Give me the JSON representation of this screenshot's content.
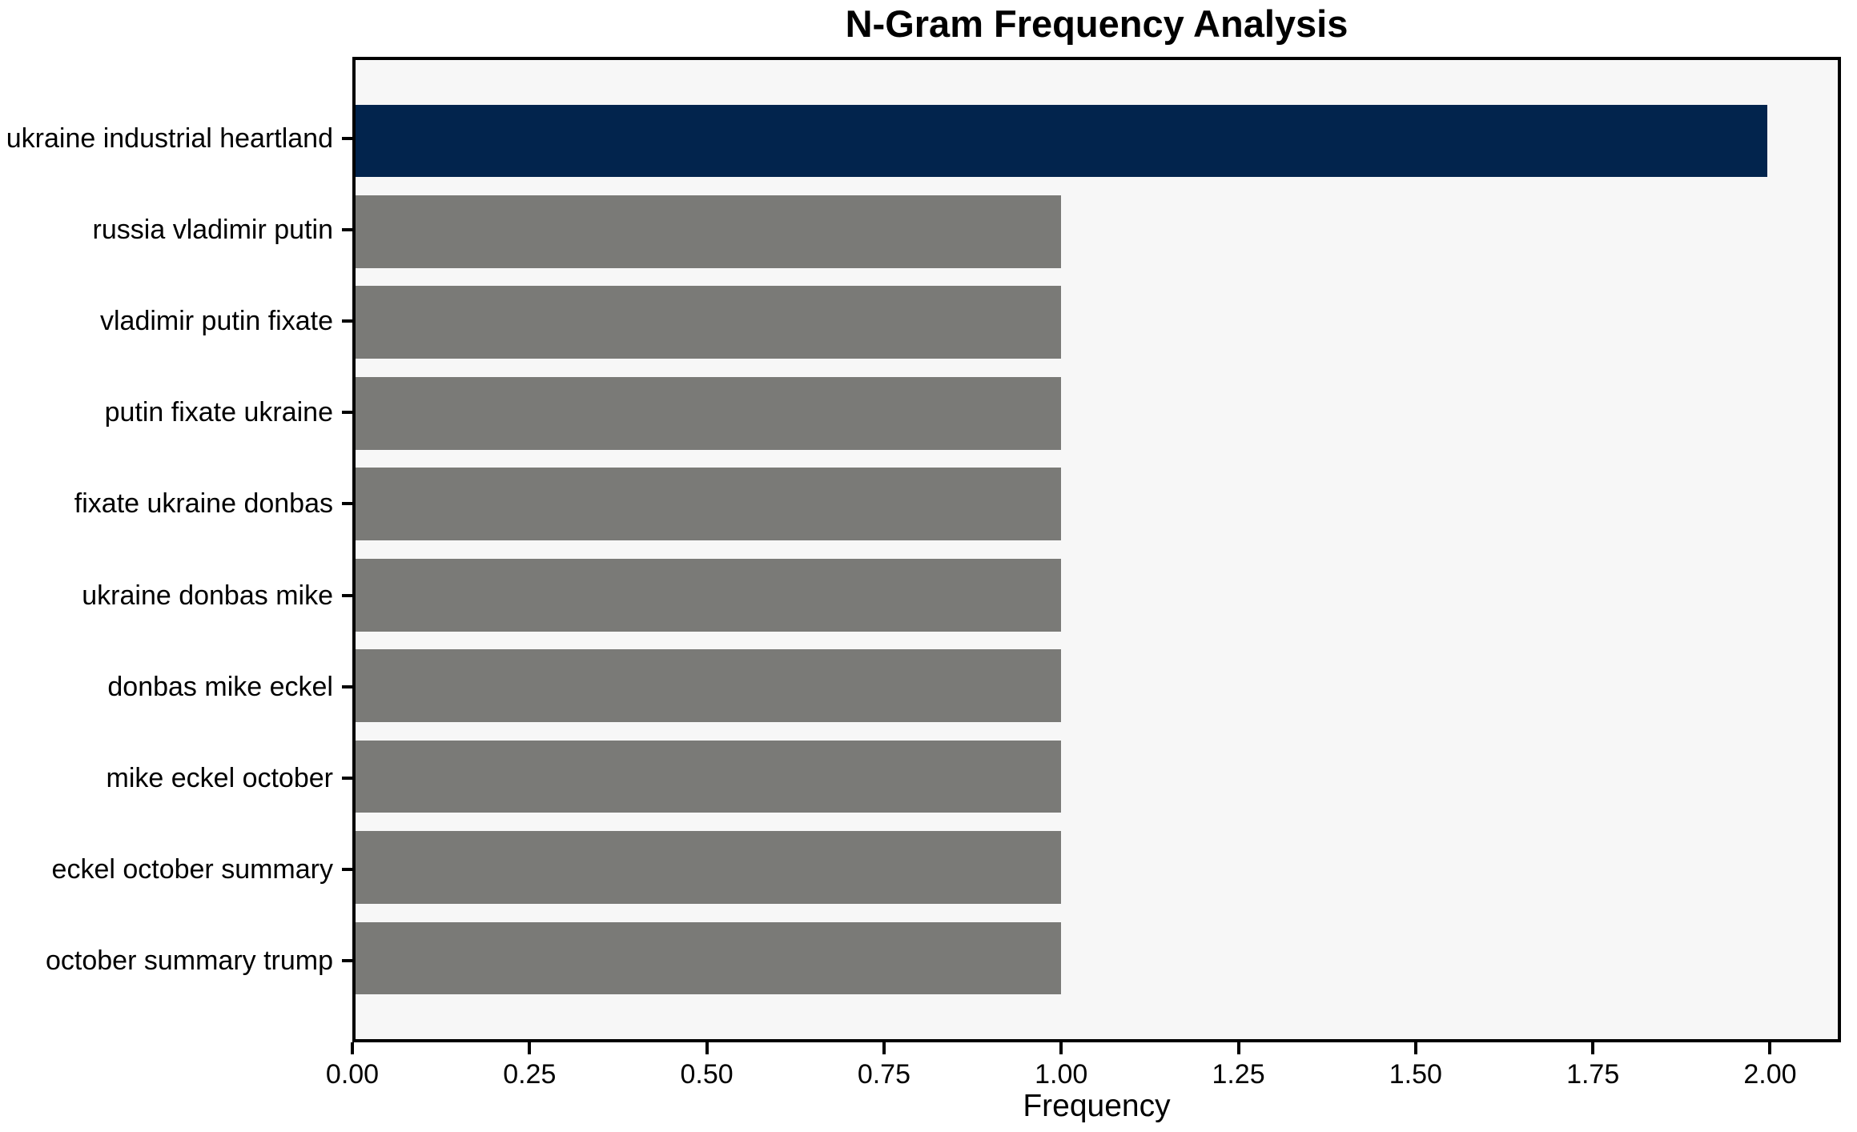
{
  "figure": {
    "background_color": "#ffffff",
    "plot_background_color": "#f7f7f7",
    "spine_color": "#000000",
    "text_color": "#000000"
  },
  "chart_data": {
    "type": "bar",
    "orientation": "horizontal",
    "title": "N-Gram Frequency Analysis",
    "xlabel": "Frequency",
    "ylabel": "",
    "categories": [
      "ukraine industrial heartland",
      "russia vladimir putin",
      "vladimir putin fixate",
      "putin fixate ukraine",
      "fixate ukraine donbas",
      "ukraine donbas mike",
      "donbas mike eckel",
      "mike eckel october",
      "eckel october summary",
      "october summary trump"
    ],
    "values": [
      2,
      1,
      1,
      1,
      1,
      1,
      1,
      1,
      1,
      1
    ],
    "bar_colors": [
      "#02244d",
      "#7a7a77",
      "#7a7a77",
      "#7a7a77",
      "#7a7a77",
      "#7a7a77",
      "#7a7a77",
      "#7a7a77",
      "#7a7a77",
      "#7a7a77"
    ],
    "highlight_color": "#02244d",
    "default_bar_color": "#7a7a77",
    "xlim": [
      0,
      2.1
    ],
    "xticks": [
      0,
      0.25,
      0.5,
      0.75,
      1.0,
      1.25,
      1.5,
      1.75,
      2.0
    ],
    "xtick_labels": [
      "0.00",
      "0.25",
      "0.50",
      "0.75",
      "1.00",
      "1.25",
      "1.50",
      "1.75",
      "2.00"
    ],
    "bar_fraction_of_slot": 0.8,
    "axis_margin_fraction": 0.05,
    "grid": false,
    "legend_position": "none"
  }
}
